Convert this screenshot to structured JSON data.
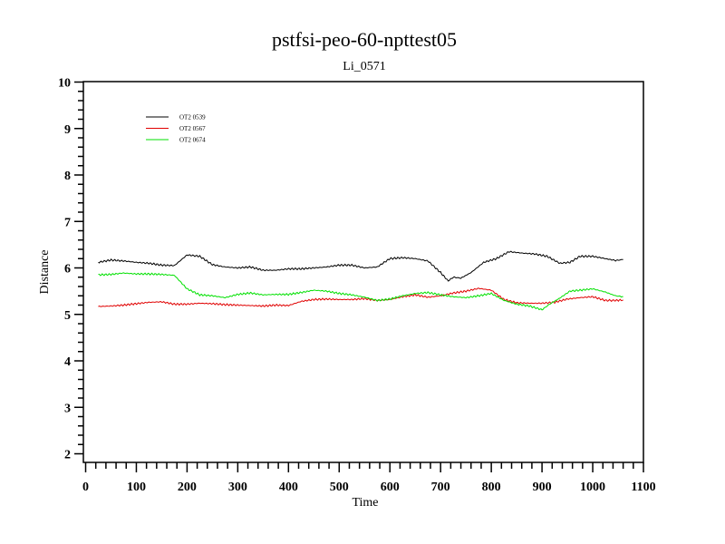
{
  "chart_data": {
    "type": "line",
    "title": "pstfsi-peo-60-npttest05",
    "subtitle": "Li_0571",
    "xlabel": "Time",
    "ylabel": "Distance",
    "xlim": [
      0,
      1100
    ],
    "ylim": [
      1.8,
      10
    ],
    "x_ticks": [
      "0",
      "100",
      "200",
      "300",
      "400",
      "500",
      "600",
      "700",
      "800",
      "900",
      "1000",
      "1100"
    ],
    "y_ticks": [
      "2",
      "3",
      "4",
      "5",
      "6",
      "7",
      "8",
      "9",
      "10"
    ],
    "legend_position": "top-left",
    "grid": false,
    "series": [
      {
        "name": "OT2 0539",
        "color": "#000000",
        "x": [
          25,
          50,
          75,
          100,
          125,
          150,
          175,
          200,
          225,
          250,
          275,
          300,
          325,
          350,
          375,
          400,
          425,
          450,
          475,
          500,
          525,
          550,
          575,
          600,
          625,
          650,
          675,
          700,
          715,
          725,
          740,
          760,
          785,
          810,
          835,
          860,
          885,
          910,
          935,
          955,
          975,
          1000,
          1025,
          1045,
          1060
        ],
        "y": [
          6.12,
          6.17,
          6.15,
          6.12,
          6.1,
          6.06,
          6.05,
          6.28,
          6.25,
          6.07,
          6.02,
          6.0,
          6.02,
          5.95,
          5.95,
          5.98,
          5.98,
          6.0,
          6.02,
          6.06,
          6.06,
          6.0,
          6.02,
          6.2,
          6.22,
          6.2,
          6.15,
          5.9,
          5.72,
          5.8,
          5.78,
          5.9,
          6.12,
          6.2,
          6.35,
          6.32,
          6.3,
          6.25,
          6.1,
          6.12,
          6.25,
          6.25,
          6.2,
          6.16,
          6.18
        ]
      },
      {
        "name": "OT2 0567",
        "color": "#e00000",
        "x": [
          25,
          50,
          75,
          100,
          125,
          150,
          175,
          200,
          225,
          250,
          275,
          300,
          325,
          350,
          375,
          400,
          425,
          450,
          475,
          500,
          525,
          550,
          575,
          600,
          625,
          650,
          675,
          700,
          725,
          750,
          775,
          800,
          825,
          850,
          875,
          900,
          925,
          950,
          975,
          1000,
          1025,
          1045,
          1060
        ],
        "y": [
          5.17,
          5.18,
          5.2,
          5.23,
          5.26,
          5.27,
          5.22,
          5.22,
          5.24,
          5.23,
          5.21,
          5.2,
          5.19,
          5.18,
          5.2,
          5.19,
          5.28,
          5.32,
          5.33,
          5.32,
          5.32,
          5.34,
          5.3,
          5.32,
          5.38,
          5.42,
          5.37,
          5.4,
          5.46,
          5.5,
          5.56,
          5.52,
          5.32,
          5.25,
          5.24,
          5.24,
          5.26,
          5.33,
          5.36,
          5.38,
          5.3,
          5.3,
          5.31
        ]
      },
      {
        "name": "OT2 0674",
        "color": "#00e000",
        "x": [
          25,
          50,
          75,
          100,
          125,
          150,
          175,
          200,
          225,
          250,
          275,
          300,
          325,
          350,
          375,
          400,
          425,
          450,
          475,
          500,
          525,
          550,
          575,
          600,
          625,
          650,
          675,
          700,
          725,
          750,
          775,
          800,
          825,
          850,
          875,
          900,
          915,
          935,
          955,
          975,
          1000,
          1025,
          1045,
          1060
        ],
        "y": [
          5.85,
          5.86,
          5.89,
          5.87,
          5.87,
          5.86,
          5.84,
          5.55,
          5.42,
          5.4,
          5.36,
          5.43,
          5.46,
          5.42,
          5.43,
          5.43,
          5.47,
          5.52,
          5.5,
          5.45,
          5.42,
          5.37,
          5.3,
          5.33,
          5.4,
          5.45,
          5.47,
          5.42,
          5.38,
          5.36,
          5.4,
          5.45,
          5.3,
          5.22,
          5.18,
          5.1,
          5.22,
          5.35,
          5.5,
          5.52,
          5.55,
          5.48,
          5.4,
          5.38
        ]
      }
    ]
  }
}
